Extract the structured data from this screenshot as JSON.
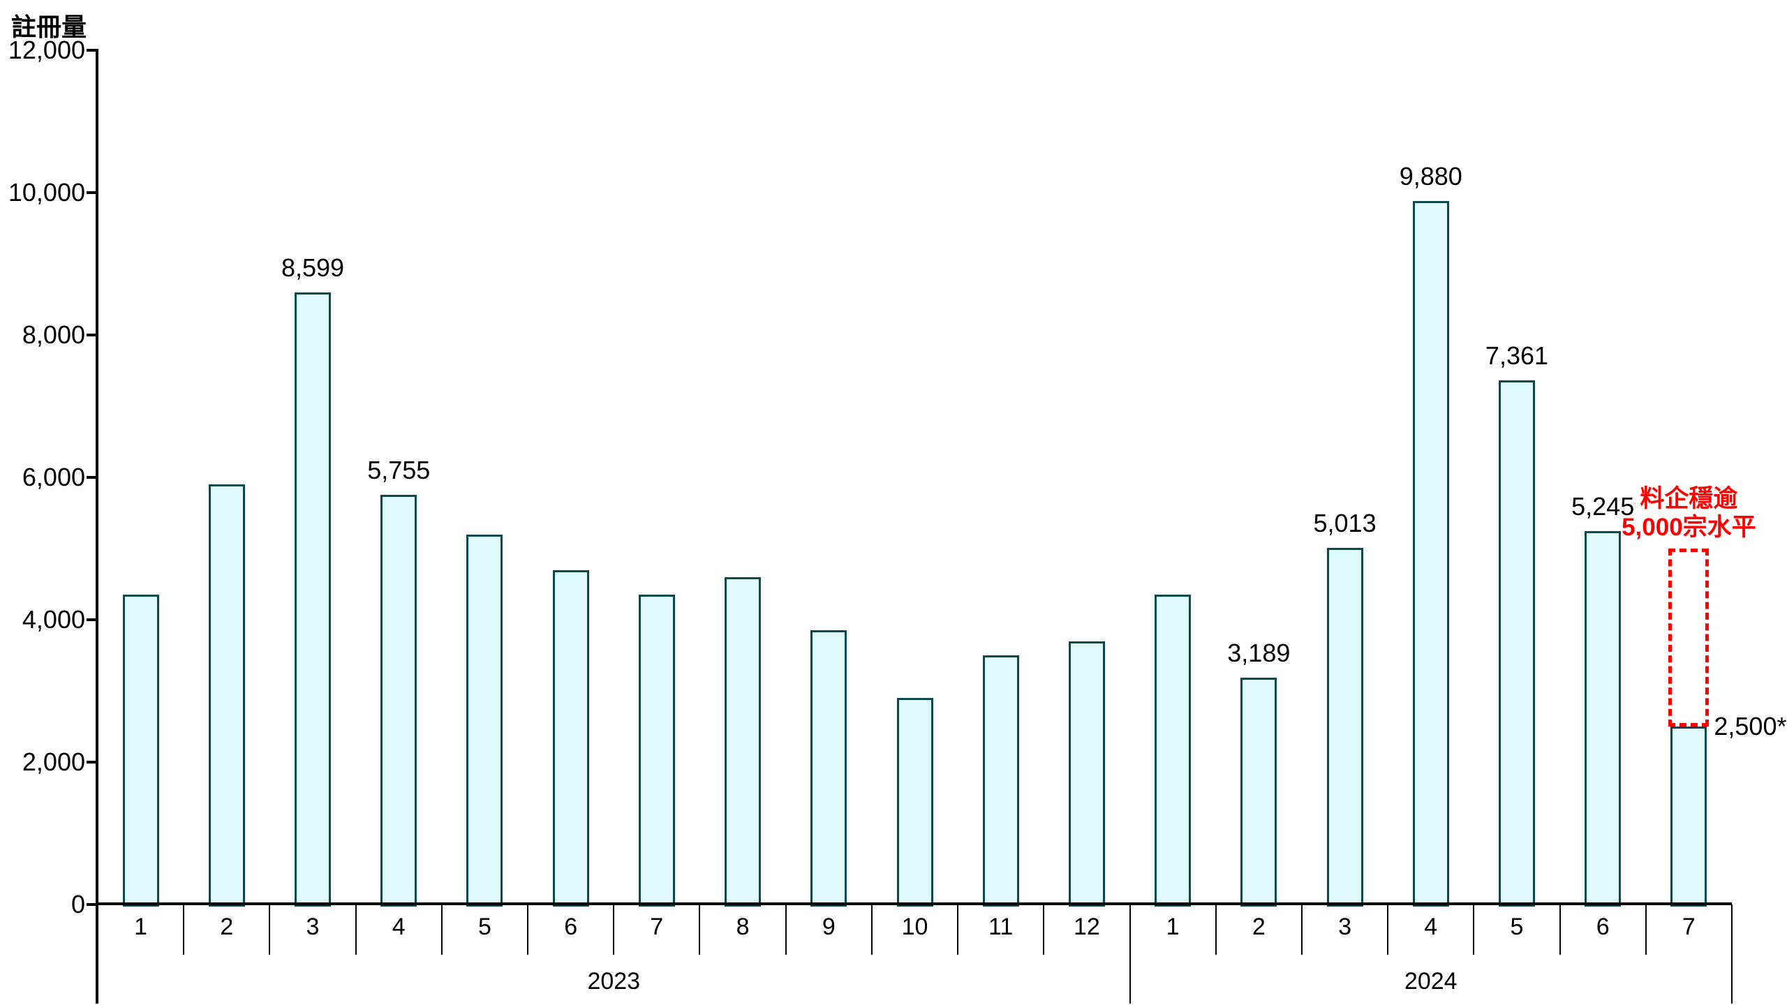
{
  "chart_data": {
    "type": "bar",
    "title": "",
    "ylabel": "註冊量",
    "xlabel": "",
    "ylim": [
      0,
      12000
    ],
    "ytick_interval": 2000,
    "ytick_labels": [
      "0",
      "2,000",
      "4,000",
      "6,000",
      "8,000",
      "10,000",
      "12,000"
    ],
    "grid": false,
    "legend": null,
    "colors": {
      "bar_fill": "#E0F9FB",
      "bar_border": "#0A4A4F",
      "axis": "#000000",
      "text": "#000000",
      "annotation": "#FF0000"
    },
    "groups": [
      {
        "year": "2023",
        "months": [
          "1",
          "2",
          "3",
          "4",
          "5",
          "6",
          "7",
          "8",
          "9",
          "10",
          "11",
          "12"
        ]
      },
      {
        "year": "2024",
        "months": [
          "1",
          "2",
          "3",
          "4",
          "5",
          "6",
          "7"
        ]
      }
    ],
    "series": [
      {
        "name": "註冊量",
        "values": [
          4350,
          5900,
          8599,
          5755,
          5200,
          4700,
          4350,
          4600,
          3850,
          2900,
          3500,
          3700,
          4350,
          3189,
          5013,
          9880,
          7361,
          5245,
          2500
        ],
        "data_labels": [
          null,
          null,
          "8,599",
          "5,755",
          null,
          null,
          null,
          null,
          null,
          null,
          null,
          null,
          null,
          "3,189",
          "5,013",
          "9,880",
          "7,361",
          "5,245",
          "2,500*"
        ]
      }
    ],
    "projection": {
      "bar_index": 18,
      "from_value": 2500,
      "to_value": 5000,
      "style": "red-dashed-outline",
      "annotation_lines": [
        "料企穩逾",
        "5,000宗水平"
      ]
    }
  }
}
